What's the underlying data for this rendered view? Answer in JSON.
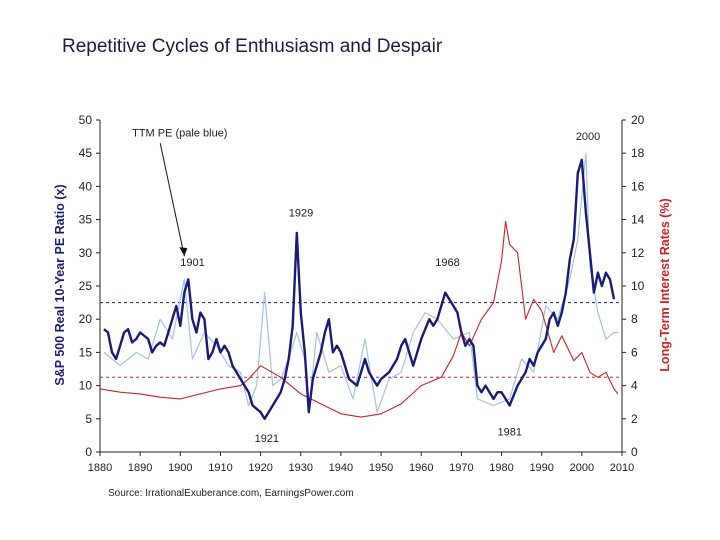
{
  "slide": {
    "title": "Repetitive Cycles of Enthusiasm and Despair"
  },
  "colors": {
    "pe10": "#1a1a7a",
    "ttm_pe": "#9ec4e6",
    "rates": "#cc2222",
    "pe_avg_line": "#1a1a7a",
    "rate_avg_line": "#cc2222",
    "axis": "#222222"
  },
  "chart_data": {
    "type": "line",
    "title": "",
    "xlabel": "",
    "ylabel": "S&P 500 Real 10-Year PE Ratio (x)",
    "y2label": "Long-Term Interest Rates (%)",
    "xlim": [
      1880,
      2010
    ],
    "ylim": [
      0,
      50
    ],
    "y2lim": [
      0,
      20
    ],
    "x_ticks": [
      "1880",
      "1890",
      "1900",
      "1910",
      "1920",
      "1930",
      "1940",
      "1950",
      "1960",
      "1970",
      "1980",
      "1990",
      "2000",
      "2010"
    ],
    "y_ticks": [
      "0",
      "5",
      "10",
      "15",
      "20",
      "25",
      "30",
      "35",
      "40",
      "45",
      "50"
    ],
    "y2_ticks": [
      "0",
      "2",
      "4",
      "6",
      "8",
      "10",
      "12",
      "14",
      "16",
      "18",
      "20"
    ],
    "reference_lines": {
      "pe_average": 22.5,
      "rate_average": 4.5
    },
    "annotations": [
      {
        "text": "TTM PE (pale blue)",
        "x": 1888,
        "y": 47.5
      },
      {
        "text": "2000",
        "x": 1998.5,
        "y": 47
      },
      {
        "text": "1929",
        "x": 1927,
        "y": 35.5
      },
      {
        "text": "1901",
        "x": 1900,
        "y": 28
      },
      {
        "text": "1968",
        "x": 1963.5,
        "y": 28
      },
      {
        "text": "1921",
        "x": 1918.5,
        "y": 1.5
      },
      {
        "text": "1981",
        "x": 1979,
        "y": 2.5
      }
    ],
    "series": [
      {
        "id": "pe10",
        "axis": "left",
        "x": [
          1881,
          1882,
          1883,
          1884,
          1885,
          1886,
          1887,
          1888,
          1889,
          1890,
          1892,
          1893,
          1894,
          1895,
          1896,
          1897,
          1898,
          1899,
          1900,
          1901,
          1902,
          1903,
          1904,
          1905,
          1906,
          1907,
          1908,
          1909,
          1910,
          1911,
          1912,
          1913,
          1914,
          1915,
          1916,
          1917,
          1918,
          1919,
          1920,
          1921,
          1922,
          1923,
          1924,
          1925,
          1926,
          1927,
          1928,
          1929,
          1930,
          1931,
          1932,
          1933,
          1934,
          1935,
          1936,
          1937,
          1938,
          1939,
          1940,
          1942,
          1944,
          1946,
          1947,
          1948,
          1949,
          1950,
          1952,
          1954,
          1955,
          1956,
          1957,
          1958,
          1960,
          1962,
          1963,
          1964,
          1966,
          1967,
          1968,
          1969,
          1970,
          1971,
          1972,
          1973,
          1974,
          1975,
          1976,
          1977,
          1978,
          1979,
          1980,
          1981,
          1982,
          1983,
          1984,
          1985,
          1986,
          1987,
          1988,
          1989,
          1990,
          1991,
          1992,
          1993,
          1994,
          1995,
          1996,
          1997,
          1998,
          1999,
          2000,
          2001,
          2002,
          2003,
          2004,
          2005,
          2006,
          2007,
          2008
        ],
        "values": [
          18.5,
          18,
          15,
          14,
          16,
          18,
          18.5,
          16.5,
          17,
          18,
          17,
          15,
          16,
          16.5,
          16,
          18,
          20,
          22,
          19,
          24,
          26,
          20,
          18,
          21,
          20,
          14,
          15,
          17,
          15,
          16,
          15,
          13,
          12,
          11,
          10,
          9,
          7,
          6.5,
          6,
          5,
          6,
          7,
          8,
          9,
          11,
          14,
          19,
          33,
          21,
          15,
          6,
          11,
          13,
          15,
          18,
          20,
          15,
          16,
          15,
          11,
          10,
          14,
          12,
          11,
          10,
          11,
          12,
          14,
          16,
          17,
          15,
          13,
          17,
          20,
          19,
          20,
          24,
          23,
          22,
          21,
          18,
          16,
          17,
          16,
          10,
          9,
          10,
          9,
          8,
          9,
          9,
          8,
          7,
          8.5,
          10,
          11,
          12,
          14,
          13,
          15,
          16,
          17,
          20,
          21,
          19,
          21,
          24,
          29,
          32,
          42,
          44,
          36,
          30,
          24,
          27,
          25,
          27,
          26,
          23
        ]
      },
      {
        "id": "ttm_pe",
        "axis": "left",
        "x": [
          1881,
          1885,
          1889,
          1892,
          1895,
          1898,
          1901,
          1903,
          1906,
          1909,
          1912,
          1915,
          1917,
          1919,
          1921,
          1923,
          1925,
          1927,
          1929,
          1931,
          1932,
          1934,
          1937,
          1940,
          1943,
          1946,
          1949,
          1952,
          1955,
          1958,
          1961,
          1964,
          1968,
          1972,
          1974,
          1978,
          1982,
          1985,
          1988,
          1991,
          1994,
          1997,
          1999,
          2001,
          2002,
          2004,
          2006,
          2008,
          2009
        ],
        "values": [
          15,
          13,
          15,
          14,
          20,
          17,
          26,
          14,
          18,
          16,
          13,
          12,
          7,
          10,
          24,
          10,
          11,
          14,
          18,
          14,
          6,
          18,
          12,
          13,
          8,
          17,
          6,
          11,
          12,
          18,
          21,
          20,
          17,
          18,
          8,
          7,
          8,
          14,
          12,
          22,
          20,
          26,
          32,
          45,
          28,
          21,
          17,
          18,
          18
        ]
      },
      {
        "id": "rates",
        "axis": "right",
        "x": [
          1880,
          1885,
          1890,
          1895,
          1900,
          1905,
          1910,
          1915,
          1917,
          1920,
          1925,
          1930,
          1935,
          1940,
          1945,
          1950,
          1955,
          1960,
          1965,
          1968,
          1970,
          1972,
          1975,
          1978,
          1980,
          1981,
          1982,
          1984,
          1986,
          1988,
          1990,
          1993,
          1995,
          1998,
          2000,
          2002,
          2004,
          2006,
          2008,
          2009
        ],
        "values": [
          3.8,
          3.6,
          3.5,
          3.3,
          3.2,
          3.5,
          3.8,
          4.0,
          4.4,
          5.2,
          4.5,
          3.5,
          2.9,
          2.3,
          2.1,
          2.3,
          2.9,
          4.0,
          4.5,
          5.8,
          7.2,
          6.4,
          8.0,
          9.0,
          11.5,
          13.9,
          12.5,
          12.0,
          8.0,
          9.2,
          8.5,
          6.0,
          7.0,
          5.5,
          6.0,
          4.8,
          4.5,
          4.8,
          3.8,
          3.5
        ]
      }
    ]
  },
  "footer": {
    "source": "Source: IrrationalExuberance.com, EarningsPower.com"
  }
}
